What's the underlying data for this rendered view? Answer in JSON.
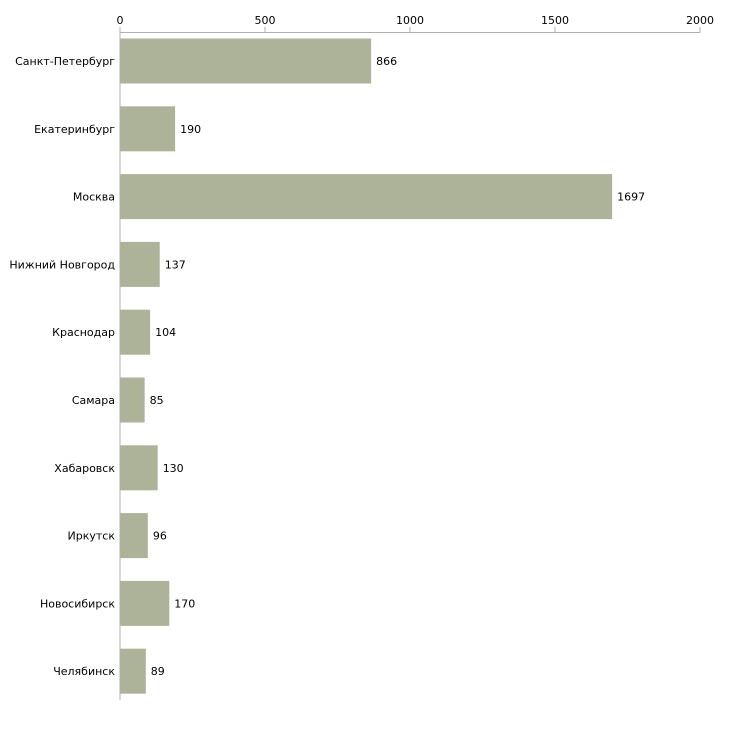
{
  "chart_data": {
    "type": "bar",
    "orientation": "horizontal",
    "title": "",
    "xlabel": "",
    "ylabel": "",
    "xlim": [
      0,
      2000
    ],
    "ticks": [
      "0",
      "500",
      "1000",
      "1500",
      "2000"
    ],
    "tick_values": [
      0,
      500,
      1000,
      1500,
      2000
    ],
    "categories": [
      "Санкт-Петербург",
      "Екатеринбург",
      "Москва",
      "Нижний Новгород",
      "Краснодар",
      "Самара",
      "Хабаровск",
      "Иркутск",
      "Новосибирск",
      "Челябинск"
    ],
    "values": [
      866,
      190,
      1697,
      137,
      104,
      85,
      130,
      96,
      170,
      89
    ],
    "bar_color": "#adb399",
    "axis_color": "#b0b0b0",
    "grid": false,
    "legend": "none"
  }
}
